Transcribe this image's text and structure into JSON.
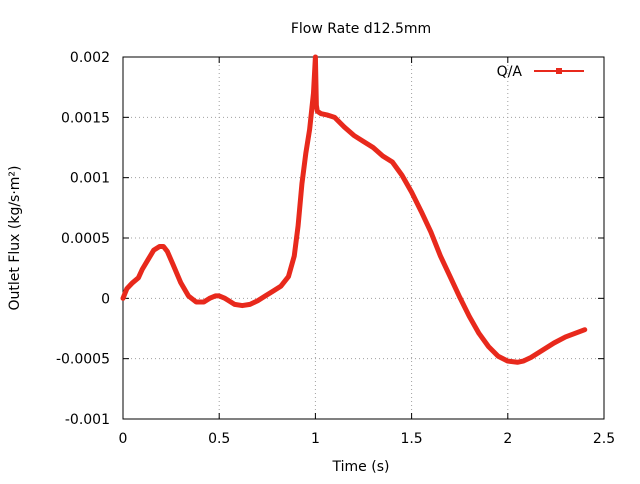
{
  "chart_data": {
    "type": "line",
    "title": "Flow Rate d12.5mm",
    "xlabel": "Time (s)",
    "ylabel": "Outlet Flux (kg/s·m²)",
    "xlim": [
      0,
      2.5
    ],
    "ylim": [
      -0.001,
      0.002
    ],
    "x_ticks": [
      "0",
      "0.5",
      "1",
      "1.5",
      "2",
      "2.5"
    ],
    "y_ticks": [
      "0.002",
      "0.0015",
      "0.001",
      "0.0005",
      "0",
      "-0.0005",
      "-0.001"
    ],
    "grid": true,
    "legend_position": "top-right",
    "series": [
      {
        "name": "Q/A",
        "color": "#e8291c",
        "x": [
          0.0,
          0.02,
          0.05,
          0.08,
          0.1,
          0.13,
          0.16,
          0.19,
          0.21,
          0.23,
          0.26,
          0.3,
          0.34,
          0.38,
          0.42,
          0.45,
          0.48,
          0.5,
          0.53,
          0.55,
          0.58,
          0.62,
          0.66,
          0.7,
          0.74,
          0.78,
          0.82,
          0.86,
          0.89,
          0.91,
          0.93,
          0.95,
          0.97,
          0.99,
          1.0,
          1.005,
          1.01,
          1.03,
          1.06,
          1.1,
          1.15,
          1.2,
          1.25,
          1.3,
          1.35,
          1.4,
          1.45,
          1.5,
          1.55,
          1.6,
          1.65,
          1.7,
          1.75,
          1.8,
          1.85,
          1.9,
          1.95,
          2.0,
          2.05,
          2.08,
          2.12,
          2.18,
          2.24,
          2.3,
          2.35,
          2.4
        ],
        "y": [
          0.0,
          8e-05,
          0.00013,
          0.00017,
          0.00024,
          0.00032,
          0.0004,
          0.00043,
          0.00043,
          0.00039,
          0.00028,
          0.00013,
          2e-05,
          -3e-05,
          -3e-05,
          0.0,
          2e-05,
          2e-05,
          0.0,
          -2e-05,
          -5e-05,
          -6e-05,
          -5e-05,
          -2e-05,
          2e-05,
          6e-05,
          0.0001,
          0.00018,
          0.00035,
          0.0006,
          0.00095,
          0.0012,
          0.0014,
          0.0017,
          0.002,
          0.0016,
          0.00155,
          0.00153,
          0.00152,
          0.0015,
          0.00142,
          0.00135,
          0.0013,
          0.00125,
          0.00118,
          0.00113,
          0.00102,
          0.00088,
          0.00072,
          0.00055,
          0.00035,
          0.00018,
          1e-05,
          -0.00015,
          -0.00029,
          -0.0004,
          -0.00048,
          -0.00052,
          -0.00053,
          -0.00052,
          -0.00049,
          -0.00043,
          -0.00037,
          -0.00032,
          -0.00029,
          -0.00026
        ]
      }
    ]
  }
}
